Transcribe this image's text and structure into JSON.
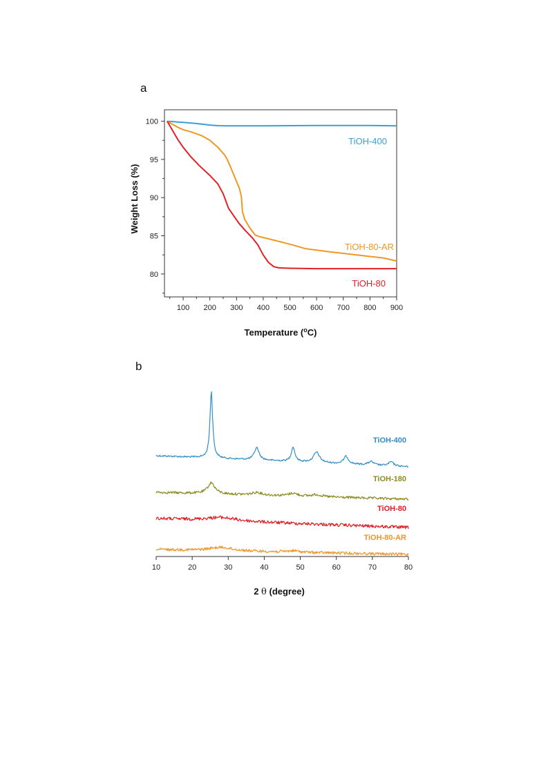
{
  "chart_data": [
    {
      "panel_label": "a",
      "type": "line",
      "xlabel": "Temperature (°C)",
      "xlabel_prefix": "Temperature (",
      "xlabel_sup": "o",
      "xlabel_suffix": "C)",
      "ylabel": "Weight Loss (%)",
      "xlim": [
        30,
        900
      ],
      "ylim": [
        77,
        101.5
      ],
      "xticks": [
        100,
        200,
        300,
        400,
        500,
        600,
        700,
        800,
        900
      ],
      "yticks": [
        80,
        85,
        90,
        95,
        100
      ],
      "series": [
        {
          "name": "TiOH-400",
          "color": "#3a9fcf",
          "x": [
            40,
            60,
            100,
            150,
            200,
            230,
            260,
            300,
            400,
            500,
            600,
            700,
            800,
            900
          ],
          "y": [
            100,
            99.95,
            99.85,
            99.7,
            99.5,
            99.42,
            99.4,
            99.4,
            99.4,
            99.42,
            99.45,
            99.45,
            99.45,
            99.4
          ]
        },
        {
          "name": "TiOH-80-AR",
          "color": "#ef9720",
          "x": [
            40,
            60,
            80,
            100,
            130,
            170,
            200,
            230,
            255,
            265,
            280,
            300,
            310,
            318,
            322,
            330,
            350,
            370,
            385,
            420,
            500,
            560,
            650,
            750,
            850,
            900
          ],
          "y": [
            100,
            99.6,
            99.2,
            98.9,
            98.6,
            98.1,
            97.5,
            96.6,
            95.6,
            95.0,
            93.8,
            92.1,
            91.3,
            90.2,
            88.2,
            87.2,
            86.0,
            85.1,
            84.9,
            84.6,
            83.9,
            83.3,
            82.9,
            82.5,
            82.1,
            81.7
          ]
        },
        {
          "name": "TiOH-80",
          "color": "#e11f24",
          "x": [
            40,
            55,
            80,
            100,
            130,
            160,
            200,
            230,
            250,
            270,
            290,
            310,
            330,
            360,
            380,
            400,
            420,
            440,
            460,
            500,
            600,
            700,
            800,
            900
          ],
          "y": [
            100,
            99.1,
            97.6,
            96.6,
            95.3,
            94.2,
            92.9,
            91.8,
            90.5,
            88.6,
            87.6,
            86.6,
            85.8,
            84.7,
            83.8,
            82.5,
            81.5,
            80.95,
            80.8,
            80.75,
            80.7,
            80.7,
            80.7,
            80.7
          ]
        }
      ]
    },
    {
      "panel_label": "b",
      "type": "line",
      "xlabel": "2 θ (degree)",
      "xlabel_prefix": "2 ",
      "xlabel_theta": "θ",
      "xlabel_suffix": " (degree)",
      "xlim": [
        10,
        80
      ],
      "xticks": [
        10,
        20,
        30,
        40,
        50,
        60,
        70,
        80
      ],
      "series": [
        {
          "name": "TiOH-400",
          "color": "#2f8dc6",
          "baseline_start": 95,
          "baseline_end": 111,
          "noise": 1.2,
          "peaks": [
            {
              "x": 25.3,
              "h": 96,
              "w": 0.45
            },
            {
              "x": 37.9,
              "h": 18,
              "w": 0.8
            },
            {
              "x": 48.0,
              "h": 21,
              "w": 0.6
            },
            {
              "x": 54.5,
              "h": 15,
              "w": 1.0
            },
            {
              "x": 62.7,
              "h": 11,
              "w": 0.8
            },
            {
              "x": 69.6,
              "h": 5,
              "w": 0.9
            },
            {
              "x": 75.2,
              "h": 6,
              "w": 0.8
            }
          ]
        },
        {
          "name": "TiOH-180",
          "color": "#8b8b1e",
          "baseline_start": 148,
          "baseline_end": 158,
          "noise": 1.8,
          "peaks": [
            {
              "x": 25.3,
              "h": 16,
              "w": 1.2
            },
            {
              "x": 38.0,
              "h": 4,
              "w": 1.5
            },
            {
              "x": 48.0,
              "h": 4,
              "w": 1.5
            },
            {
              "x": 54.5,
              "h": 3,
              "w": 1.5
            }
          ]
        },
        {
          "name": "TiOH-80",
          "color": "#e01c22",
          "baseline_start": 186,
          "baseline_end": 199,
          "noise": 2.3,
          "peaks": [
            {
              "x": 28.0,
              "h": 5,
              "w": 5.0
            }
          ]
        },
        {
          "name": "TiOH-80-AR",
          "color": "#f29322",
          "baseline_start": 231,
          "baseline_end": 238,
          "noise": 2.0,
          "peaks": [
            {
              "x": 28.0,
              "h": 5,
              "w": 4.0
            },
            {
              "x": 48.0,
              "h": 2,
              "w": 2.0
            }
          ]
        }
      ]
    }
  ]
}
